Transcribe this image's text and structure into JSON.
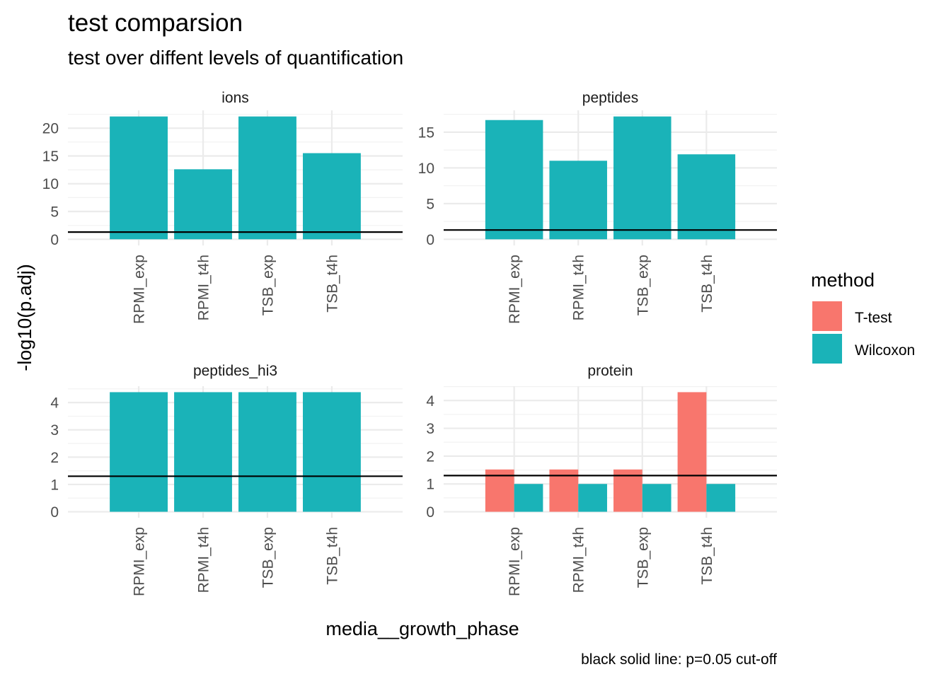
{
  "title": "test comparsion",
  "subtitle": "test over diffent levels of quantification",
  "caption": "black solid line: p=0.05 cut-off",
  "colors": {
    "T-test": "#F8766D",
    "Wilcoxon": "#1AB3B8",
    "cutoff": "#000000"
  },
  "chart_data": {
    "type": "bar",
    "xlabel": "media__growth_phase",
    "ylabel": "-log10(p.adj)",
    "categories": [
      "RPMI_exp",
      "RPMI_t4h",
      "TSB_exp",
      "TSB_t4h"
    ],
    "legend": {
      "title": "method",
      "entries": [
        "T-test",
        "Wilcoxon"
      ],
      "position": "right"
    },
    "cutoff": 1.30103,
    "grid": true,
    "facets": [
      {
        "name": "ions",
        "ylim": [
          0,
          22.1
        ],
        "yticks": [
          0,
          5,
          10,
          15,
          20
        ],
        "series": [
          {
            "name": "Wilcoxon",
            "values": [
              22.1,
              12.6,
              22.1,
              15.5
            ]
          }
        ]
      },
      {
        "name": "peptides",
        "ylim": [
          0,
          17.2
        ],
        "yticks": [
          0,
          5,
          10,
          15
        ],
        "series": [
          {
            "name": "Wilcoxon",
            "values": [
              16.7,
              11.0,
              17.2,
              11.9
            ]
          }
        ]
      },
      {
        "name": "peptides_hi3",
        "ylim": [
          0,
          4.38
        ],
        "yticks": [
          0,
          1,
          2,
          3,
          4
        ],
        "series": [
          {
            "name": "Wilcoxon",
            "values": [
              4.38,
              4.38,
              4.38,
              4.38
            ]
          }
        ]
      },
      {
        "name": "protein",
        "ylim": [
          0,
          4.3
        ],
        "yticks": [
          0,
          1,
          2,
          3,
          4
        ],
        "series": [
          {
            "name": "T-test",
            "values": [
              1.52,
              1.52,
              1.52,
              4.3
            ]
          },
          {
            "name": "Wilcoxon",
            "values": [
              1.0,
              1.0,
              1.0,
              1.0
            ]
          }
        ]
      }
    ]
  }
}
